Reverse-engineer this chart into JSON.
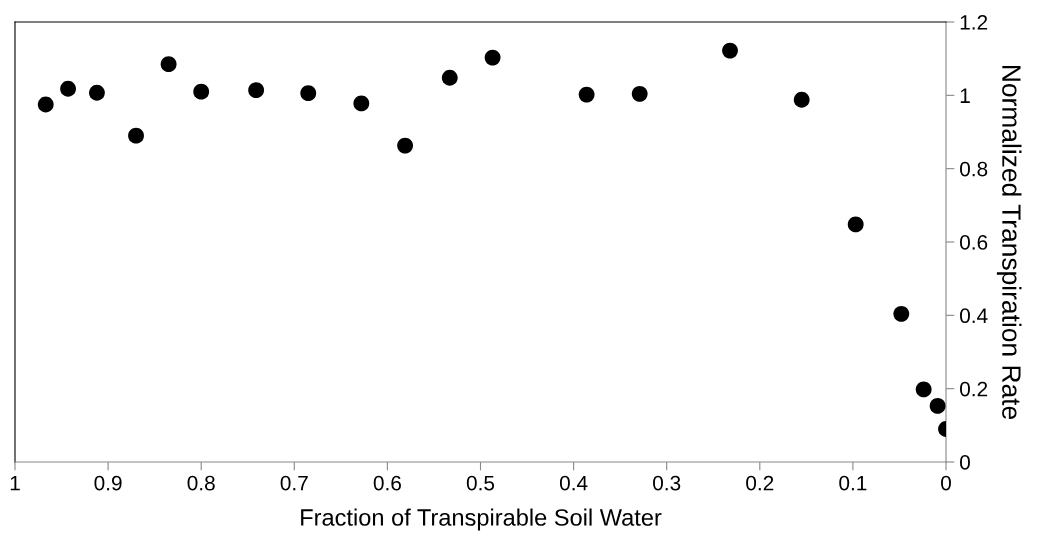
{
  "chart_data": {
    "type": "scatter",
    "xlabel": "Fraction of Transpirable Soil Water",
    "ylabel": "Normalized Transpiration Rate",
    "x": [
      0.967,
      0.943,
      0.912,
      0.87,
      0.835,
      0.8,
      0.741,
      0.685,
      0.628,
      0.581,
      0.533,
      0.487,
      0.386,
      0.329,
      0.232,
      0.155,
      0.097,
      0.048,
      0.024,
      0.009,
      0.0
    ],
    "series": [
      {
        "color": "#000000",
        "values": [
          0.975,
          1.018,
          1.007,
          0.89,
          1.085,
          1.01,
          1.014,
          1.006,
          0.978,
          0.863,
          1.048,
          1.103,
          1.002,
          1.004,
          1.122,
          0.988,
          0.648,
          0.404,
          0.198,
          0.153,
          0.09
        ]
      }
    ],
    "xlim": [
      1,
      0
    ],
    "xticks": [
      1,
      {
        "value": 0.9,
        "label": "0.9"
      },
      {
        "value": 0.8,
        "label": "0.8"
      },
      {
        "value": 0.7,
        "label": "0.7"
      },
      {
        "value": 0.6,
        "label": "0.6"
      },
      {
        "value": 0.5,
        "label": "0.5"
      },
      {
        "value": 0.4,
        "label": "0.4"
      },
      {
        "value": 0.3,
        "label": "0.3"
      },
      {
        "value": 0.2,
        "label": "0.2"
      },
      {
        "value": 0.1,
        "label": "0.1"
      },
      0
    ],
    "ylim": [
      0,
      1.2
    ],
    "yticks": [
      0,
      {
        "value": 0.2,
        "label": "0.2"
      },
      {
        "value": 0.4,
        "label": "0.4"
      },
      {
        "value": 0.6,
        "label": "0.6"
      },
      {
        "value": 0.8,
        "label": "0.8"
      },
      1,
      {
        "value": 1.2,
        "label": "1.2"
      }
    ],
    "marker": "circle",
    "grid": false,
    "legend": false
  }
}
